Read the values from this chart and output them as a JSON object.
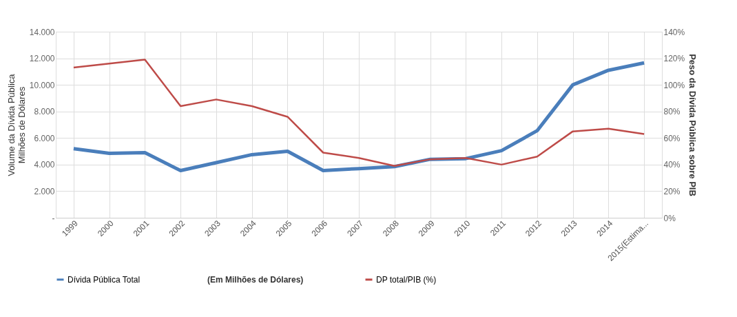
{
  "chart_data": {
    "type": "line",
    "categories": [
      "1999",
      "2000",
      "2001",
      "2002",
      "2003",
      "2004",
      "2005",
      "2006",
      "2007",
      "2008",
      "2009",
      "2010",
      "2011",
      "2012",
      "2013",
      "2014",
      "2015(Estima..."
    ],
    "ylabel": "Volume da Dívida Pública\nMilhões de Dólares",
    "y2label": "Peso da Dívida Pública sobre PIB",
    "ylim": [
      0,
      14000
    ],
    "yticks": [
      {
        "value": 0,
        "label": "-"
      },
      {
        "value": 2000,
        "label": "2.000"
      },
      {
        "value": 4000,
        "label": "4.000"
      },
      {
        "value": 6000,
        "label": "6.000"
      },
      {
        "value": 8000,
        "label": "8.000"
      },
      {
        "value": 10000,
        "label": "10.000"
      },
      {
        "value": 12000,
        "label": "12.000"
      },
      {
        "value": 14000,
        "label": "14.000"
      }
    ],
    "y2lim": [
      0,
      140
    ],
    "y2ticks": [
      {
        "value": 0,
        "label": "0%"
      },
      {
        "value": 20,
        "label": "20%"
      },
      {
        "value": 40,
        "label": "40%"
      },
      {
        "value": 60,
        "label": "60%"
      },
      {
        "value": 80,
        "label": "80%"
      },
      {
        "value": 100,
        "label": "100%"
      },
      {
        "value": 120,
        "label": "120%"
      },
      {
        "value": 140,
        "label": "140%"
      }
    ],
    "series": [
      {
        "name": "Dívida Pública Total",
        "color": "#4a7ebb",
        "values": [
          5200,
          4850,
          4900,
          3550,
          4150,
          4750,
          5000,
          3550,
          3700,
          3850,
          4400,
          4450,
          5050,
          6550,
          10000,
          11100,
          11650
        ]
      },
      {
        "name": "DP total/PIB (%)",
        "color": "#be4b48",
        "axis": "y2",
        "values": [
          113,
          116,
          119,
          84,
          89,
          84,
          76,
          49,
          45,
          39,
          44,
          45,
          40,
          46,
          65,
          67,
          63
        ]
      }
    ],
    "annotations": [
      "(Em Milhões de Dólares)"
    ],
    "grid": true,
    "legend": "bottom",
    "line_style": "solid",
    "marker": "none"
  }
}
